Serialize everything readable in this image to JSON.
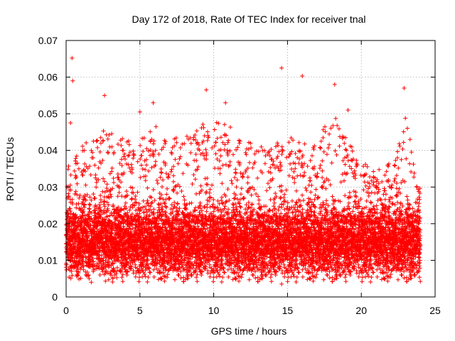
{
  "chart_data": {
    "type": "scatter",
    "title": "Day 172 of 2018, Rate Of TEC Index for receiver tnal",
    "xlabel": "GPS time / hours",
    "ylabel": "ROTI / TECUs",
    "xlim": [
      0,
      25
    ],
    "ylim": [
      0,
      0.07
    ],
    "xticks": [
      0,
      5,
      10,
      15,
      20,
      25
    ],
    "yticks": [
      0,
      0.01,
      0.02,
      0.03,
      0.04,
      0.05,
      0.06,
      0.07
    ],
    "xtick_labels": [
      "0",
      "5",
      "10",
      "15",
      "20",
      "25"
    ],
    "ytick_labels": [
      "0",
      "0.01",
      "0.02",
      "0.03",
      "0.04",
      "0.05",
      "0.06",
      "0.07"
    ],
    "grid": true,
    "marker": "+",
    "color": "#ff0000",
    "x_data_range": [
      0,
      24
    ],
    "bulk_range": [
      0.007,
      0.025
    ],
    "median_level": 0.015,
    "notable_points": [
      {
        "x": 0.4,
        "y": 0.0652
      },
      {
        "x": 0.45,
        "y": 0.059
      },
      {
        "x": 0.3,
        "y": 0.0475
      },
      {
        "x": 2.6,
        "y": 0.055
      },
      {
        "x": 5.0,
        "y": 0.0505
      },
      {
        "x": 5.9,
        "y": 0.053
      },
      {
        "x": 9.5,
        "y": 0.0565
      },
      {
        "x": 10.8,
        "y": 0.053
      },
      {
        "x": 14.6,
        "y": 0.0625
      },
      {
        "x": 16.0,
        "y": 0.0603
      },
      {
        "x": 18.2,
        "y": 0.058
      },
      {
        "x": 19.1,
        "y": 0.051
      },
      {
        "x": 22.9,
        "y": 0.057
      },
      {
        "x": 14.6,
        "y": 0.0035
      }
    ],
    "envelope_peaks": [
      {
        "x": 0.5,
        "y": 0.038
      },
      {
        "x": 1.5,
        "y": 0.044
      },
      {
        "x": 2.5,
        "y": 0.047
      },
      {
        "x": 3.5,
        "y": 0.045
      },
      {
        "x": 4.5,
        "y": 0.042
      },
      {
        "x": 6.0,
        "y": 0.047
      },
      {
        "x": 7.0,
        "y": 0.043
      },
      {
        "x": 8.0,
        "y": 0.044
      },
      {
        "x": 9.5,
        "y": 0.048
      },
      {
        "x": 10.5,
        "y": 0.049
      },
      {
        "x": 11.5,
        "y": 0.045
      },
      {
        "x": 12.5,
        "y": 0.042
      },
      {
        "x": 14.0,
        "y": 0.041
      },
      {
        "x": 15.0,
        "y": 0.045
      },
      {
        "x": 16.5,
        "y": 0.041
      },
      {
        "x": 18.2,
        "y": 0.05
      },
      {
        "x": 19.5,
        "y": 0.04
      },
      {
        "x": 21.0,
        "y": 0.034
      },
      {
        "x": 22.5,
        "y": 0.04
      },
      {
        "x": 23.0,
        "y": 0.052
      },
      {
        "x": 23.8,
        "y": 0.03
      }
    ]
  }
}
